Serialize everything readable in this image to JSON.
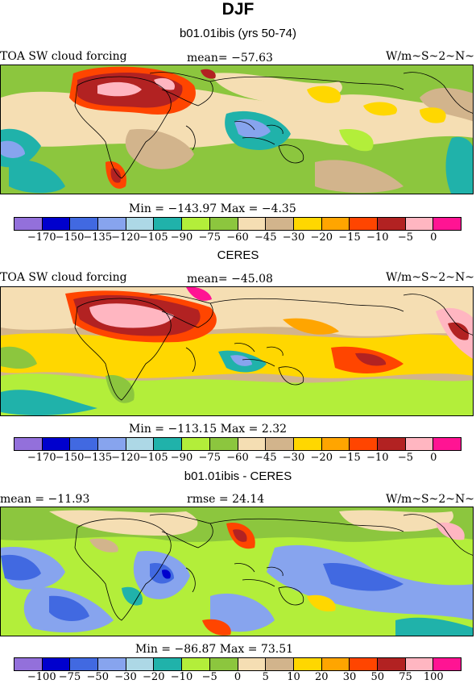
{
  "title": "DJF",
  "panels": [
    {
      "subtitle": "b01.01ibis (yrs 50-74)",
      "left_label": "TOA SW cloud forcing",
      "center_label": "mean= −57.63",
      "right_label": "W/m~S~2~N~",
      "stats": "Min = −143.97 Max =   −4.35",
      "colorbar": "absolute"
    },
    {
      "subtitle": "CERES",
      "left_label": "TOA SW cloud forcing",
      "center_label": "mean= −45.08",
      "right_label": "W/m~S~2~N~",
      "stats": "Min = −113.15 Max =    2.32",
      "colorbar": "absolute"
    },
    {
      "subtitle": "b01.01ibis - CERES",
      "left_label": "mean = −11.93",
      "center_label": "rmse =  24.14",
      "right_label": "W/m~S~2~N~",
      "stats": "Min = −86.87 Max =  73.51",
      "colorbar": "difference"
    }
  ],
  "colorbars": {
    "absolute": {
      "colors": [
        "#9370db",
        "#0000cd",
        "#4169e1",
        "#87a4ee",
        "#add8e6",
        "#20b2aa",
        "#b3ee3a",
        "#8cc63e",
        "#f5deb3",
        "#d2b48c",
        "#ffd700",
        "#ffa500",
        "#ff4500",
        "#b22222",
        "#ffb6c1",
        "#ff1493"
      ],
      "labels": [
        "−170",
        "−150",
        "−135",
        "−120",
        "−105",
        "−90",
        "−75",
        "−60",
        "−45",
        "−30",
        "−20",
        "−15",
        "−10",
        "−5",
        "0"
      ]
    },
    "difference": {
      "colors": [
        "#9370db",
        "#0000cd",
        "#4169e1",
        "#87a4ee",
        "#add8e6",
        "#20b2aa",
        "#b3ee3a",
        "#8cc63e",
        "#f5deb3",
        "#d2b48c",
        "#ffd700",
        "#ffa500",
        "#ff4500",
        "#b22222",
        "#ffb6c1",
        "#ff1493"
      ],
      "labels": [
        "−100",
        "−75",
        "−50",
        "−30",
        "−20",
        "−10",
        "−5",
        "0",
        "5",
        "10",
        "20",
        "30",
        "50",
        "75",
        "100"
      ]
    }
  }
}
